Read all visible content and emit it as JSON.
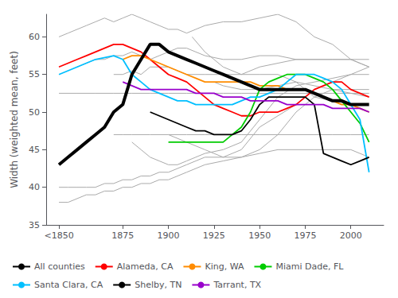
{
  "chart_data": {
    "type": "line",
    "ylabel": "Width (weighted mean, feet)",
    "xlim": [
      1833,
      2018
    ],
    "xticks": [
      {
        "value": 1840,
        "label": "<1850"
      },
      1875,
      1900,
      1925,
      1950,
      1975,
      2000
    ],
    "ylim": [
      35,
      63
    ],
    "yticks": [
      35,
      40,
      45,
      50,
      55,
      60
    ],
    "grid": false,
    "legend": "bottom",
    "series": [
      {
        "color": "#aaaaaa",
        "x": [
          1840,
          1850,
          1860,
          1870,
          1880,
          1890,
          1900,
          1910,
          1920,
          1930,
          1940,
          1950,
          1960,
          1970,
          1980,
          1990,
          2000,
          2010
        ],
        "values": [
          52.5,
          52.5,
          52.5,
          52.5,
          52.5,
          52.5,
          52.5,
          52.5,
          52.5,
          52.5,
          52.5,
          52.5,
          52.5,
          52.5,
          52.5,
          52.5,
          52.5,
          52.5
        ]
      },
      {
        "color": "#aaaaaa",
        "x": [
          1840,
          1845,
          1850,
          1855,
          1860,
          1865,
          1870,
          1875,
          1880,
          1885,
          1890,
          1895,
          1900,
          1905,
          1910,
          1915,
          1920,
          1930,
          1940,
          1950,
          1960,
          1970,
          1975,
          1980,
          1990,
          2000,
          2010
        ],
        "values": [
          60,
          60.5,
          61,
          61.5,
          62,
          62.5,
          62,
          62.5,
          63,
          62.5,
          62,
          61.5,
          61,
          61,
          60.5,
          61,
          61.5,
          62,
          62,
          62.5,
          63,
          62,
          61,
          60,
          59,
          57,
          56
        ]
      },
      {
        "color": "#aaaaaa",
        "x": [
          1850,
          1855,
          1860,
          1865,
          1870,
          1875,
          1880,
          1885,
          1890,
          1895,
          1900,
          1905,
          1910,
          1915,
          1920,
          1930,
          1940,
          1950,
          1960,
          1970,
          1980,
          1990,
          2000,
          2010
        ],
        "values": [
          56,
          56.5,
          57,
          57,
          57.5,
          57.5,
          58,
          57.5,
          57,
          57.5,
          58,
          58.5,
          58.5,
          58,
          57.5,
          57,
          57,
          57.5,
          57.5,
          57,
          57,
          57,
          57,
          56
        ]
      },
      {
        "color": "#aaaaaa",
        "x": [
          1870,
          1875,
          1880,
          1885,
          1890,
          1895,
          1900,
          1905,
          1910,
          1915,
          1920,
          1930,
          1940,
          1950,
          1960,
          1970,
          1980,
          1990,
          2000,
          2010
        ],
        "values": [
          55,
          55,
          55.5,
          55,
          56,
          56,
          56,
          55.5,
          55,
          55,
          55,
          55,
          55,
          56,
          56.5,
          57,
          57,
          57,
          57,
          57
        ]
      },
      {
        "color": "#aaaaaa",
        "x": [
          1880,
          1885,
          1890,
          1895,
          1900,
          1905,
          1910,
          1915,
          1920,
          1930,
          1940,
          1950,
          1960,
          1970,
          1980,
          1990,
          2000,
          2010
        ],
        "values": [
          46,
          45,
          44,
          43.5,
          43,
          43,
          43.5,
          44,
          44.5,
          45,
          46,
          49,
          52,
          53.5,
          54,
          54.5,
          55,
          55
        ]
      },
      {
        "color": "#aaaaaa",
        "x": [
          1840,
          1845,
          1850,
          1855,
          1860,
          1865,
          1870,
          1875,
          1880,
          1885,
          1890,
          1895,
          1900,
          1905,
          1910,
          1920,
          1930,
          1940,
          1950,
          1960,
          1970,
          1980,
          1990,
          2000,
          2010
        ],
        "values": [
          40,
          40,
          40,
          40,
          40,
          40.5,
          40.5,
          41,
          41,
          41.5,
          41.5,
          42,
          42,
          42.5,
          43,
          44,
          44,
          44,
          45,
          47,
          50,
          52,
          53,
          53,
          53
        ]
      },
      {
        "color": "#aaaaaa",
        "x": [
          1900,
          1905,
          1910,
          1915,
          1920,
          1925,
          1930,
          1940,
          1950,
          1960,
          1970,
          1980,
          1990,
          2000,
          2010
        ],
        "values": [
          47,
          46.5,
          46,
          45.5,
          45,
          44.5,
          44,
          45,
          48,
          49.5,
          51,
          53,
          54,
          55,
          56
        ]
      },
      {
        "color": "#aaaaaa",
        "x": [
          1913,
          1920,
          1925,
          1930,
          1940,
          1950,
          1960,
          1970,
          1980,
          1990,
          2000,
          2010
        ],
        "values": [
          60,
          58,
          57,
          56,
          55,
          55,
          55,
          54,
          52,
          51.5,
          51,
          50
        ]
      },
      {
        "color": "#aaaaaa",
        "x": [
          1925,
          1930,
          1940,
          1950,
          1960,
          1970,
          1980,
          1990,
          2000,
          2010
        ],
        "values": [
          54,
          53.5,
          53,
          53,
          53.5,
          54,
          53.5,
          53,
          52.5,
          52
        ]
      },
      {
        "color": "#aaaaaa",
        "x": [
          1870,
          1875,
          1880,
          1890,
          1900,
          1910,
          1920,
          1930,
          1940,
          1950,
          1960,
          1970,
          1980,
          1990,
          2000,
          2010
        ],
        "values": [
          47,
          47,
          47,
          47,
          47,
          47,
          47,
          47,
          47,
          47,
          47,
          47,
          47,
          47,
          47,
          47
        ]
      },
      {
        "color": "#aaaaaa",
        "x": [
          1840,
          1845,
          1850,
          1855,
          1860,
          1865,
          1870,
          1875,
          1880,
          1885,
          1890,
          1895,
          1900,
          1910,
          1920,
          1930,
          1940,
          1950,
          1960,
          1970,
          1980,
          1990,
          2000,
          2010
        ],
        "values": [
          38,
          38,
          38.5,
          39,
          39,
          39.5,
          39.5,
          40,
          40,
          40.5,
          40.5,
          41,
          41,
          42,
          43,
          43.5,
          44,
          44.5,
          45,
          45,
          45,
          45,
          45,
          44
        ]
      },
      {
        "name": "All counties",
        "color": "#000000",
        "x": [
          1840,
          1845,
          1850,
          1855,
          1860,
          1865,
          1870,
          1875,
          1880,
          1885,
          1890,
          1895,
          1900,
          1905,
          1910,
          1915,
          1920,
          1925,
          1930,
          1935,
          1940,
          1945,
          1950,
          1955,
          1960,
          1965,
          1970,
          1975,
          1980,
          1985,
          1990,
          1995,
          2000,
          2005,
          2010
        ],
        "values": [
          43,
          44,
          45,
          46,
          47,
          48,
          50,
          51,
          55,
          57,
          59,
          59,
          58,
          57.5,
          57,
          56.5,
          56,
          55.5,
          55,
          54.5,
          54,
          53.5,
          53,
          53,
          53,
          53,
          53,
          53,
          52.5,
          52,
          51.5,
          51.5,
          51,
          51,
          51
        ]
      },
      {
        "name": "Alameda, CA",
        "color": "#ff0000",
        "x": [
          1840,
          1845,
          1850,
          1855,
          1860,
          1865,
          1870,
          1875,
          1880,
          1885,
          1890,
          1895,
          1900,
          1905,
          1910,
          1915,
          1920,
          1925,
          1930,
          1935,
          1940,
          1945,
          1950,
          1955,
          1960,
          1965,
          1970,
          1975,
          1980,
          1985,
          1990,
          1995,
          2000,
          2005,
          2010
        ],
        "values": [
          56,
          56.5,
          57,
          57.5,
          58,
          58.5,
          59,
          59,
          58.5,
          58,
          57,
          56,
          55,
          54.5,
          54,
          53,
          52,
          51,
          50.5,
          50,
          49.5,
          49.5,
          50,
          50,
          50,
          50.5,
          51,
          52,
          53,
          53.5,
          54,
          54,
          53,
          52.5,
          52
        ]
      },
      {
        "name": "King, WA",
        "color": "#ff8c00",
        "x": [
          1875,
          1880,
          1885,
          1890,
          1895,
          1900,
          1905,
          1910,
          1915,
          1920,
          1925,
          1930,
          1935,
          1940,
          1945,
          1950,
          1955,
          1960,
          1965,
          1970,
          1975,
          1980,
          1985,
          1990,
          1995,
          2000,
          2005,
          2010
        ],
        "values": [
          57,
          57.5,
          57.5,
          57,
          56.5,
          56,
          55.5,
          55,
          54.5,
          54,
          54,
          54,
          54,
          54,
          54,
          53.5,
          53.5,
          53.5,
          53,
          53,
          53,
          52.5,
          52,
          51.5,
          51,
          51,
          50.5,
          50
        ]
      },
      {
        "name": "Miami Dade, FL",
        "color": "#00cc00",
        "x": [
          1900,
          1905,
          1910,
          1915,
          1920,
          1925,
          1930,
          1935,
          1940,
          1945,
          1950,
          1955,
          1960,
          1965,
          1970,
          1975,
          1980,
          1985,
          1990,
          1995,
          2000,
          2005,
          2010
        ],
        "values": [
          46,
          46,
          46,
          46,
          46,
          46,
          46,
          47,
          48,
          50,
          53,
          54,
          54.5,
          55,
          55,
          55,
          54.5,
          54,
          53,
          51.5,
          50,
          48.5,
          46
        ]
      },
      {
        "name": "Santa Clara, CA",
        "color": "#00bfff",
        "x": [
          1840,
          1845,
          1850,
          1855,
          1860,
          1870,
          1875,
          1880,
          1885,
          1890,
          1895,
          1900,
          1905,
          1910,
          1915,
          1920,
          1925,
          1930,
          1935,
          1940,
          1945,
          1950,
          1955,
          1960,
          1965,
          1970,
          1975,
          1980,
          1985,
          1990,
          1995,
          2000,
          2005,
          2010
        ],
        "values": [
          55,
          55.5,
          56,
          56.5,
          57,
          57.5,
          57,
          55,
          54,
          53,
          52.5,
          52,
          51.5,
          51.5,
          51,
          51,
          51,
          51,
          51,
          51.5,
          52,
          52,
          52.5,
          53,
          54,
          55,
          55,
          55,
          54.5,
          54,
          53,
          51,
          49,
          42
        ]
      },
      {
        "name": "Shelby, TN",
        "color": "#000000",
        "x": [
          1890,
          1895,
          1900,
          1905,
          1910,
          1915,
          1920,
          1925,
          1930,
          1935,
          1940,
          1945,
          1950,
          1955,
          1960,
          1965,
          1970,
          1975,
          1980,
          1985,
          1990,
          1995,
          2000,
          2005,
          2010
        ],
        "values": [
          50,
          49.5,
          49,
          48.5,
          48,
          47.5,
          47.5,
          47,
          47,
          47,
          47.5,
          49,
          51,
          52,
          52,
          52,
          52,
          52,
          51,
          44.5,
          44,
          43.5,
          43,
          43.5,
          44
        ]
      },
      {
        "name": "Tarrant, TX",
        "color": "#9900cc",
        "x": [
          1875,
          1880,
          1885,
          1890,
          1895,
          1900,
          1905,
          1910,
          1915,
          1920,
          1925,
          1930,
          1935,
          1940,
          1945,
          1950,
          1955,
          1960,
          1965,
          1970,
          1975,
          1980,
          1985,
          1990,
          1995,
          2000,
          2005,
          2010
        ],
        "values": [
          54,
          53.5,
          53,
          53,
          53,
          53,
          53,
          53,
          52.5,
          52.5,
          52.5,
          52,
          52,
          52,
          51.5,
          51.5,
          51.5,
          51.5,
          51,
          51,
          51,
          51,
          51,
          50.5,
          50.5,
          50.5,
          50.5,
          50
        ]
      }
    ]
  }
}
